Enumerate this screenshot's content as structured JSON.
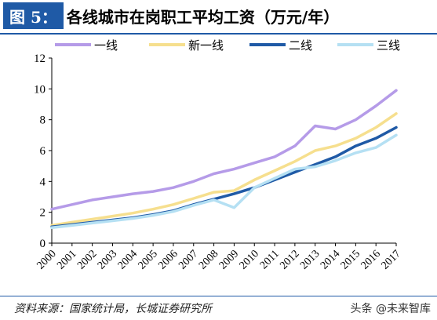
{
  "header": {
    "figure_label": "图 5：",
    "title": "各线城市在岗职工平均工资（万元/年）"
  },
  "footer": {
    "source": "资料来源：国家统计局，长城证券研究所",
    "watermark": "头条 @未来智库"
  },
  "chart_data": {
    "type": "line",
    "title": "各线城市在岗职工平均工资（万元/年）",
    "xlabel": "",
    "ylabel": "",
    "categories": [
      "2000",
      "2001",
      "2002",
      "2003",
      "2004",
      "2005",
      "2006",
      "2007",
      "2008",
      "2009",
      "2010",
      "2011",
      "2012",
      "2013",
      "2014",
      "2015",
      "2016",
      "2017"
    ],
    "ylim": [
      0,
      12
    ],
    "yticks": [
      0,
      2,
      4,
      6,
      8,
      10,
      12
    ],
    "grid": false,
    "legend_position": "top",
    "series": [
      {
        "name": "一线",
        "color": "#b59be8",
        "values": [
          2.2,
          2.5,
          2.8,
          3.0,
          3.2,
          3.35,
          3.6,
          4.0,
          4.5,
          4.8,
          5.2,
          5.6,
          6.3,
          7.6,
          7.4,
          8.0,
          8.9,
          9.9
        ]
      },
      {
        "name": "新一线",
        "color": "#f6df8e",
        "values": [
          1.15,
          1.35,
          1.55,
          1.75,
          1.95,
          2.2,
          2.5,
          2.9,
          3.3,
          3.4,
          4.1,
          4.7,
          5.3,
          6.0,
          6.3,
          6.8,
          7.5,
          8.4
        ]
      },
      {
        "name": "二线",
        "color": "#1f5aa6",
        "values": [
          1.05,
          1.2,
          1.35,
          1.5,
          1.65,
          1.85,
          2.1,
          2.5,
          2.85,
          3.2,
          3.6,
          4.1,
          4.6,
          5.1,
          5.6,
          6.3,
          6.8,
          7.5
        ]
      },
      {
        "name": "三线",
        "color": "#b5e0f3",
        "values": [
          1.0,
          1.15,
          1.3,
          1.45,
          1.6,
          1.8,
          2.05,
          2.45,
          2.8,
          2.3,
          3.6,
          4.2,
          4.8,
          4.95,
          5.35,
          5.85,
          6.2,
          7.0
        ]
      }
    ]
  }
}
